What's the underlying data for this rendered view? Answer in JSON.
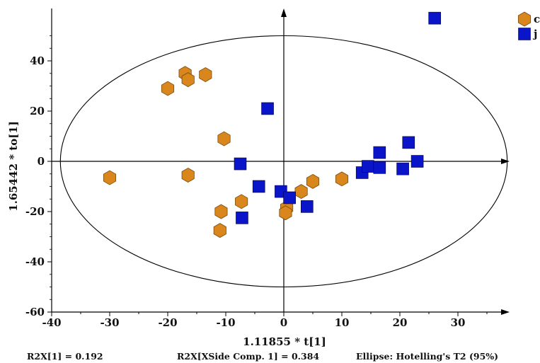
{
  "chart_data": {
    "type": "scatter",
    "title": "",
    "xlabel": "1.11855 * t[1]",
    "ylabel": "1.65442 * to[1]",
    "xlim": [
      -40,
      40
    ],
    "ylim": [
      -60,
      60
    ],
    "xticks": [
      -40,
      -30,
      -20,
      -10,
      0,
      10,
      20,
      30
    ],
    "yticks": [
      -60,
      -40,
      -20,
      0,
      20,
      40
    ],
    "grid": false,
    "legend_position": "top-right",
    "ellipse": {
      "center": [
        0,
        0
      ],
      "semi_axis_x": 38.5,
      "semi_axis_y": 50
    },
    "series": [
      {
        "name": "c",
        "marker": "hexagon",
        "color": "#d9861c",
        "points": [
          [
            -30,
            -6.5
          ],
          [
            -20,
            29
          ],
          [
            -17,
            35
          ],
          [
            -16.5,
            32.5
          ],
          [
            -13.5,
            34.5
          ],
          [
            -16.5,
            -5.5
          ],
          [
            -10.3,
            9
          ],
          [
            -7.3,
            -16
          ],
          [
            -10.8,
            -20
          ],
          [
            -11,
            -27.5
          ],
          [
            0.5,
            -18.5
          ],
          [
            0.3,
            -20.5
          ],
          [
            3,
            -12
          ],
          [
            5,
            -8
          ],
          [
            10,
            -7
          ]
        ]
      },
      {
        "name": "j",
        "marker": "square",
        "color": "#0a14c8",
        "points": [
          [
            -2.8,
            21
          ],
          [
            -7.5,
            -1
          ],
          [
            -4.3,
            -10
          ],
          [
            -7.2,
            -22.5
          ],
          [
            -0.5,
            -12
          ],
          [
            1,
            -14.5
          ],
          [
            4,
            -18
          ],
          [
            13.5,
            -4.5
          ],
          [
            14.5,
            -2
          ],
          [
            16.5,
            3.5
          ],
          [
            16.5,
            -2.5
          ],
          [
            21.5,
            7.5
          ],
          [
            20.5,
            -3
          ],
          [
            23,
            0
          ],
          [
            26,
            57
          ]
        ]
      }
    ]
  },
  "footer": {
    "r2x": "R2X[1] = 0.192",
    "r2x_side": "R2X[XSide Comp. 1] = 0.384",
    "ellipse_note": "Ellipse: Hotelling's T2 (95%)"
  }
}
